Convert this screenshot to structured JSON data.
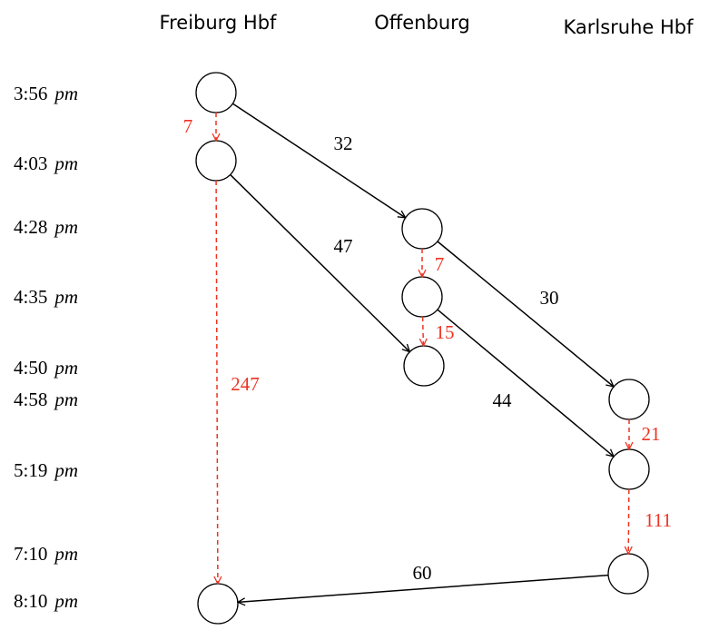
{
  "stations": [
    "Freiburg Hbf",
    "Offenburg",
    "Karlsruhe Hbf"
  ],
  "times": [
    {
      "time": "3:56",
      "unit": "pm"
    },
    {
      "time": "4:03",
      "unit": "pm"
    },
    {
      "time": "4:28",
      "unit": "pm"
    },
    {
      "time": "4:35",
      "unit": "pm"
    },
    {
      "time": "4:50",
      "unit": "pm"
    },
    {
      "time": "4:58",
      "unit": "pm"
    },
    {
      "time": "5:19",
      "unit": "pm"
    },
    {
      "time": "7:10",
      "unit": "pm"
    },
    {
      "time": "8:10",
      "unit": "pm"
    }
  ],
  "edges": [
    {
      "label": 32
    },
    {
      "label": 47
    },
    {
      "label": 30
    },
    {
      "label": 44
    },
    {
      "label": 60
    },
    {
      "label": 7
    },
    {
      "label": 247
    },
    {
      "label": 7
    },
    {
      "label": 15
    },
    {
      "label": 21
    },
    {
      "label": 111
    }
  ]
}
